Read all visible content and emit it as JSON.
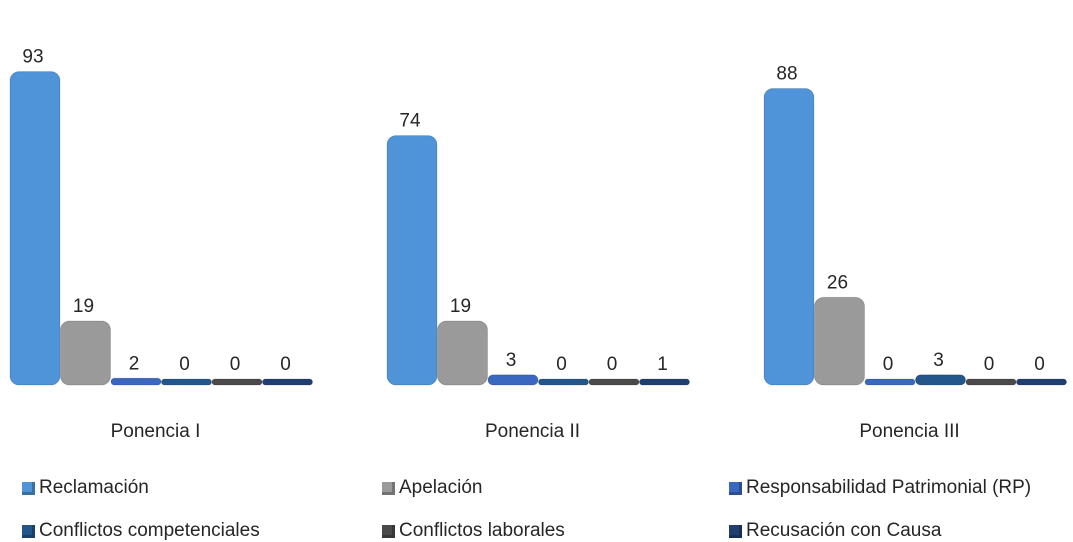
{
  "chart_data": {
    "type": "bar",
    "categories": [
      "Ponencia I",
      "Ponencia II",
      "Ponencia III"
    ],
    "series": [
      {
        "name": "Reclamación",
        "values": [
          93,
          74,
          88
        ],
        "color": "#4f94d8"
      },
      {
        "name": "Apelación",
        "values": [
          19,
          19,
          26
        ],
        "color": "#9a9a9a"
      },
      {
        "name": "Responsabilidad Patrimonial (RP)",
        "values": [
          2,
          3,
          0
        ],
        "color": "#3a68c0"
      },
      {
        "name": "Conflictos competenciales",
        "values": [
          0,
          0,
          3
        ],
        "color": "#23568a"
      },
      {
        "name": "Conflictos laborales",
        "values": [
          0,
          0,
          0
        ],
        "color": "#4a4a4a"
      },
      {
        "name": "Recusación con Causa",
        "values": [
          0,
          1,
          0
        ],
        "color": "#1f3f73"
      }
    ],
    "title": "",
    "xlabel": "",
    "ylabel": "",
    "ylim": [
      0,
      100
    ],
    "grid": false,
    "legend_position": "bottom"
  }
}
